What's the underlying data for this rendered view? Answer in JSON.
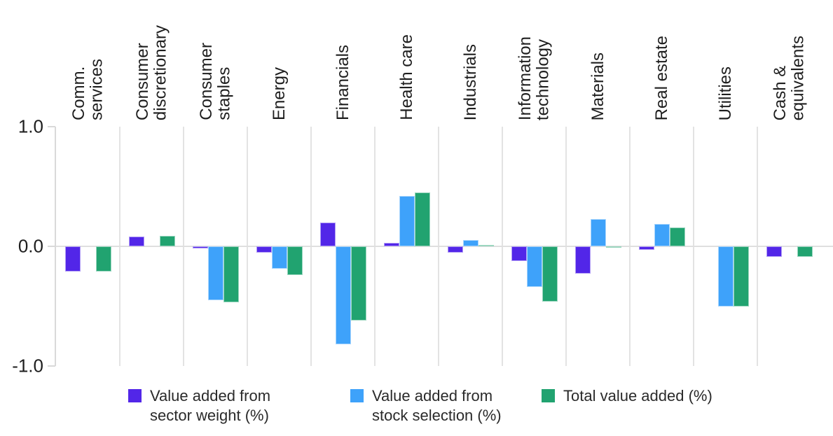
{
  "chart_data": {
    "type": "bar",
    "categories": [
      "Comm.\nservices",
      "Consumer\ndiscretionary",
      "Consumer\nstaples",
      "Energy",
      "Financials",
      "Health care",
      "Industrials",
      "Information\ntechnology",
      "Materials",
      "Real estate",
      "Utilities",
      "Cash &\nequivalents"
    ],
    "series": [
      {
        "name": "Value added from sector weight (%)",
        "legend_label": "Value added from\nsector weight (%)",
        "color": "#5226e8",
        "values": [
          -0.21,
          0.08,
          -0.02,
          -0.05,
          0.2,
          0.03,
          -0.05,
          -0.12,
          -0.23,
          -0.03,
          0.0,
          -0.09
        ]
      },
      {
        "name": "Value added from stock selection (%)",
        "legend_label": "Value added from\nstock selection (%)",
        "color": "#3ea2fa",
        "values": [
          0.0,
          0.0,
          -0.45,
          -0.19,
          -0.82,
          0.42,
          0.05,
          -0.34,
          0.23,
          0.19,
          -0.5,
          0.0
        ]
      },
      {
        "name": "Total value added (%)",
        "legend_label": "Total value added (%)",
        "color": "#21a370",
        "values": [
          -0.21,
          0.09,
          -0.47,
          -0.24,
          -0.62,
          0.45,
          0.01,
          -0.46,
          -0.01,
          0.16,
          -0.5,
          -0.09
        ]
      }
    ],
    "title": "",
    "xlabel": "",
    "ylabel": "",
    "ylim": [
      -1.0,
      1.0
    ],
    "yticks": [
      {
        "value": 1.0,
        "label": "1.0"
      },
      {
        "value": 0.0,
        "label": "0.0"
      },
      {
        "value": -1.0,
        "label": "-1.0"
      }
    ],
    "grid": "vertical-between-categories",
    "legend_position": "bottom",
    "colors": {
      "gridline": "#e3e3e3",
      "zero_line": "#dfdfdf",
      "axis": "#d9d9d9",
      "text": "#1e1e1e"
    }
  }
}
